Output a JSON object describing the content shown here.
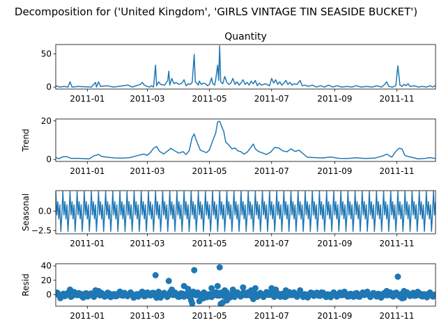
{
  "figure": {
    "suptitle": "Decomposition for ('United Kingdom', 'GIRLS VINTAGE TIN SEASIDE BUCKET')"
  },
  "colors": {
    "line": "#1f77b4",
    "axis": "#000000",
    "background": "#ffffff"
  },
  "chart_data": [
    {
      "type": "line",
      "title": "Quantity",
      "ylabel": "",
      "ylim": [
        -3,
        64
      ],
      "yticks": [
        "0",
        "50"
      ],
      "ytick_values": [
        0,
        50
      ],
      "xlim": [
        "2010-12-01",
        "2011-12-09"
      ],
      "xticks": [
        "2011-01",
        "2011-03",
        "2011-05",
        "2011-07",
        "2011-09",
        "2011-11"
      ],
      "xtick_values": [
        "2011-01-01",
        "2011-03-01",
        "2011-05-01",
        "2011-07-01",
        "2011-09-01",
        "2011-11-01"
      ],
      "points": [
        [
          "2010-12-01",
          2
        ],
        [
          "2010-12-05",
          0
        ],
        [
          "2010-12-09",
          1
        ],
        [
          "2010-12-13",
          0
        ],
        [
          "2010-12-15",
          8
        ],
        [
          "2010-12-17",
          0
        ],
        [
          "2010-12-23",
          1
        ],
        [
          "2011-01-05",
          0
        ],
        [
          "2011-01-09",
          7
        ],
        [
          "2011-01-10",
          0
        ],
        [
          "2011-01-12",
          8
        ],
        [
          "2011-01-14",
          1
        ],
        [
          "2011-01-20",
          2
        ],
        [
          "2011-01-27",
          0
        ],
        [
          "2011-02-10",
          3
        ],
        [
          "2011-02-14",
          0
        ],
        [
          "2011-02-22",
          4
        ],
        [
          "2011-02-24",
          7
        ],
        [
          "2011-02-26",
          3
        ],
        [
          "2011-03-01",
          1
        ],
        [
          "2011-03-03",
          0
        ],
        [
          "2011-03-05",
          2
        ],
        [
          "2011-03-07",
          0
        ],
        [
          "2011-03-09",
          33
        ],
        [
          "2011-03-10",
          2
        ],
        [
          "2011-03-12",
          8
        ],
        [
          "2011-03-14",
          4
        ],
        [
          "2011-03-18",
          3
        ],
        [
          "2011-03-21",
          10
        ],
        [
          "2011-03-22",
          24
        ],
        [
          "2011-03-23",
          3
        ],
        [
          "2011-03-25",
          13
        ],
        [
          "2011-03-27",
          5
        ],
        [
          "2011-03-29",
          7
        ],
        [
          "2011-04-01",
          4
        ],
        [
          "2011-04-04",
          6
        ],
        [
          "2011-04-06",
          11
        ],
        [
          "2011-04-08",
          2
        ],
        [
          "2011-04-10",
          5
        ],
        [
          "2011-04-12",
          4
        ],
        [
          "2011-04-14",
          7
        ],
        [
          "2011-04-16",
          49
        ],
        [
          "2011-04-17",
          8
        ],
        [
          "2011-04-19",
          5
        ],
        [
          "2011-04-20",
          3
        ],
        [
          "2011-04-21",
          9
        ],
        [
          "2011-04-23",
          4
        ],
        [
          "2011-04-25",
          6
        ],
        [
          "2011-04-27",
          5
        ],
        [
          "2011-04-29",
          2
        ],
        [
          "2011-05-01",
          4
        ],
        [
          "2011-05-03",
          14
        ],
        [
          "2011-05-04",
          6
        ],
        [
          "2011-05-06",
          3
        ],
        [
          "2011-05-07",
          10
        ],
        [
          "2011-05-09",
          33
        ],
        [
          "2011-05-10",
          10
        ],
        [
          "2011-05-11",
          62
        ],
        [
          "2011-05-12",
          8
        ],
        [
          "2011-05-14",
          5
        ],
        [
          "2011-05-16",
          16
        ],
        [
          "2011-05-18",
          7
        ],
        [
          "2011-05-20",
          4
        ],
        [
          "2011-05-22",
          6
        ],
        [
          "2011-05-24",
          13
        ],
        [
          "2011-05-26",
          4
        ],
        [
          "2011-05-28",
          8
        ],
        [
          "2011-05-30",
          3
        ],
        [
          "2011-06-01",
          6
        ],
        [
          "2011-06-03",
          11
        ],
        [
          "2011-06-05",
          4
        ],
        [
          "2011-06-07",
          7
        ],
        [
          "2011-06-09",
          3
        ],
        [
          "2011-06-11",
          9
        ],
        [
          "2011-06-13",
          5
        ],
        [
          "2011-06-15",
          10
        ],
        [
          "2011-06-17",
          2
        ],
        [
          "2011-06-19",
          6
        ],
        [
          "2011-06-21",
          3
        ],
        [
          "2011-06-25",
          5
        ],
        [
          "2011-06-29",
          2
        ],
        [
          "2011-07-01",
          13
        ],
        [
          "2011-07-03",
          6
        ],
        [
          "2011-07-05",
          11
        ],
        [
          "2011-07-07",
          4
        ],
        [
          "2011-07-09",
          8
        ],
        [
          "2011-07-11",
          3
        ],
        [
          "2011-07-13",
          6
        ],
        [
          "2011-07-15",
          10
        ],
        [
          "2011-07-17",
          4
        ],
        [
          "2011-07-19",
          7
        ],
        [
          "2011-07-21",
          3
        ],
        [
          "2011-07-23",
          5
        ],
        [
          "2011-07-26",
          4
        ],
        [
          "2011-07-29",
          10
        ],
        [
          "2011-07-31",
          2
        ],
        [
          "2011-08-03",
          3
        ],
        [
          "2011-08-06",
          1
        ],
        [
          "2011-08-10",
          3
        ],
        [
          "2011-08-14",
          0
        ],
        [
          "2011-08-18",
          2
        ],
        [
          "2011-08-22",
          0
        ],
        [
          "2011-08-26",
          3
        ],
        [
          "2011-08-30",
          0
        ],
        [
          "2011-09-03",
          2
        ],
        [
          "2011-09-08",
          0
        ],
        [
          "2011-09-13",
          1
        ],
        [
          "2011-09-18",
          0
        ],
        [
          "2011-09-22",
          2
        ],
        [
          "2011-09-27",
          0
        ],
        [
          "2011-10-02",
          1
        ],
        [
          "2011-10-08",
          0
        ],
        [
          "2011-10-12",
          2
        ],
        [
          "2011-10-17",
          0
        ],
        [
          "2011-10-20",
          4
        ],
        [
          "2011-10-22",
          8
        ],
        [
          "2011-10-24",
          1
        ],
        [
          "2011-10-28",
          0
        ],
        [
          "2011-10-31",
          2
        ],
        [
          "2011-11-02",
          32
        ],
        [
          "2011-11-04",
          3
        ],
        [
          "2011-11-06",
          1
        ],
        [
          "2011-11-08",
          4
        ],
        [
          "2011-11-10",
          2
        ],
        [
          "2011-11-12",
          5
        ],
        [
          "2011-11-14",
          1
        ],
        [
          "2011-11-18",
          2
        ],
        [
          "2011-11-22",
          0
        ],
        [
          "2011-11-26",
          1
        ],
        [
          "2011-11-30",
          0
        ],
        [
          "2011-12-04",
          2
        ],
        [
          "2011-12-06",
          0
        ],
        [
          "2011-12-09",
          2
        ]
      ]
    },
    {
      "type": "line",
      "title": "",
      "ylabel": "Trend",
      "ylim": [
        -1,
        21
      ],
      "yticks": [
        "0",
        "20"
      ],
      "ytick_values": [
        0,
        20
      ],
      "xlim": [
        "2010-12-01",
        "2011-12-09"
      ],
      "xticks": [
        "2011-01",
        "2011-03",
        "2011-05",
        "2011-07",
        "2011-09",
        "2011-11"
      ],
      "xtick_values": [
        "2011-01-01",
        "2011-03-01",
        "2011-05-01",
        "2011-07-01",
        "2011-09-01",
        "2011-11-01"
      ],
      "points": [
        [
          "2010-12-01",
          1.0
        ],
        [
          "2010-12-04",
          0.4
        ],
        [
          "2010-12-08",
          1.4
        ],
        [
          "2010-12-12",
          1.4
        ],
        [
          "2010-12-16",
          0.6
        ],
        [
          "2010-12-24",
          0.6
        ],
        [
          "2011-01-03",
          0.3
        ],
        [
          "2011-01-07",
          1.8
        ],
        [
          "2011-01-12",
          2.6
        ],
        [
          "2011-01-15",
          1.6
        ],
        [
          "2011-01-20",
          1.2
        ],
        [
          "2011-01-28",
          0.8
        ],
        [
          "2011-02-05",
          0.7
        ],
        [
          "2011-02-12",
          1.0
        ],
        [
          "2011-02-19",
          2.0
        ],
        [
          "2011-02-25",
          2.8
        ],
        [
          "2011-03-01",
          2.2
        ],
        [
          "2011-03-04",
          3.6
        ],
        [
          "2011-03-07",
          5.8
        ],
        [
          "2011-03-10",
          6.8
        ],
        [
          "2011-03-13",
          4.2
        ],
        [
          "2011-03-17",
          2.9
        ],
        [
          "2011-03-21",
          4.5
        ],
        [
          "2011-03-24",
          5.8
        ],
        [
          "2011-03-28",
          4.4
        ],
        [
          "2011-04-01",
          3.3
        ],
        [
          "2011-04-05",
          4.1
        ],
        [
          "2011-04-08",
          2.6
        ],
        [
          "2011-04-11",
          4.5
        ],
        [
          "2011-04-14",
          11.5
        ],
        [
          "2011-04-16",
          13.2
        ],
        [
          "2011-04-18",
          10.0
        ],
        [
          "2011-04-22",
          4.8
        ],
        [
          "2011-04-25",
          4.2
        ],
        [
          "2011-04-28",
          3.5
        ],
        [
          "2011-05-01",
          5.0
        ],
        [
          "2011-05-04",
          9.5
        ],
        [
          "2011-05-07",
          13.5
        ],
        [
          "2011-05-09",
          19.5
        ],
        [
          "2011-05-11",
          19.8
        ],
        [
          "2011-05-13",
          17.0
        ],
        [
          "2011-05-15",
          14.5
        ],
        [
          "2011-05-17",
          9.0
        ],
        [
          "2011-05-20",
          7.5
        ],
        [
          "2011-05-23",
          5.5
        ],
        [
          "2011-05-26",
          6.0
        ],
        [
          "2011-05-29",
          4.5
        ],
        [
          "2011-06-01",
          4.0
        ],
        [
          "2011-06-04",
          2.8
        ],
        [
          "2011-06-07",
          3.8
        ],
        [
          "2011-06-10",
          5.8
        ],
        [
          "2011-06-13",
          8.0
        ],
        [
          "2011-06-15",
          5.5
        ],
        [
          "2011-06-18",
          4.2
        ],
        [
          "2011-06-22",
          3.4
        ],
        [
          "2011-06-26",
          2.6
        ],
        [
          "2011-06-30",
          3.8
        ],
        [
          "2011-07-04",
          6.2
        ],
        [
          "2011-07-08",
          6.0
        ],
        [
          "2011-07-12",
          4.5
        ],
        [
          "2011-07-16",
          4.0
        ],
        [
          "2011-07-20",
          5.5
        ],
        [
          "2011-07-24",
          4.2
        ],
        [
          "2011-07-28",
          4.8
        ],
        [
          "2011-08-01",
          3.0
        ],
        [
          "2011-08-05",
          1.2
        ],
        [
          "2011-08-12",
          1.0
        ],
        [
          "2011-08-20",
          0.8
        ],
        [
          "2011-08-28",
          1.3
        ],
        [
          "2011-09-05",
          0.6
        ],
        [
          "2011-09-14",
          0.5
        ],
        [
          "2011-09-22",
          0.9
        ],
        [
          "2011-10-01",
          0.5
        ],
        [
          "2011-10-10",
          0.7
        ],
        [
          "2011-10-18",
          1.8
        ],
        [
          "2011-10-22",
          2.8
        ],
        [
          "2011-10-27",
          1.2
        ],
        [
          "2011-10-31",
          4.2
        ],
        [
          "2011-11-03",
          5.8
        ],
        [
          "2011-11-06",
          5.5
        ],
        [
          "2011-11-09",
          2.0
        ],
        [
          "2011-11-15",
          1.2
        ],
        [
          "2011-11-22",
          0.3
        ],
        [
          "2011-11-29",
          0.6
        ],
        [
          "2011-12-03",
          1.0
        ],
        [
          "2011-12-09",
          0.5
        ]
      ]
    },
    {
      "type": "line",
      "title": "",
      "ylabel": "Seasonal",
      "ylim": [
        -2.9,
        2.6
      ],
      "yticks": [
        "0.0",
        "−2.5"
      ],
      "ytick_values": [
        0,
        -2.5
      ],
      "xlim": [
        "2010-12-01",
        "2011-12-09"
      ],
      "xticks": [
        "2011-01",
        "2011-03",
        "2011-05",
        "2011-07",
        "2011-09",
        "2011-11"
      ],
      "xtick_values": [
        "2011-01-01",
        "2011-03-01",
        "2011-05-01",
        "2011-07-01",
        "2011-09-01",
        "2011-11-01"
      ],
      "period_days": 7,
      "weekly_pattern": [
        2.5,
        -0.5,
        1.2,
        -1.0,
        0.8,
        -2.6,
        -0.4
      ]
    },
    {
      "type": "scatter",
      "title": "",
      "ylabel": "Resid",
      "ylim": [
        -16,
        43
      ],
      "yticks": [
        "0",
        "20",
        "40"
      ],
      "ytick_values": [
        0,
        20,
        40
      ],
      "xlim": [
        "2010-12-01",
        "2011-12-09"
      ],
      "xticks": [
        "2011-01",
        "2011-03",
        "2011-05",
        "2011-07",
        "2011-09",
        "2011-11"
      ],
      "xtick_values": [
        "2011-01-01",
        "2011-03-01",
        "2011-05-01",
        "2011-07-01",
        "2011-09-01",
        "2011-11-01"
      ],
      "points": [
        [
          "2010-12-15",
          7
        ],
        [
          "2011-01-09",
          6
        ],
        [
          "2011-01-12",
          5
        ],
        [
          "2011-02-24",
          4
        ],
        [
          "2011-03-09",
          27
        ],
        [
          "2011-03-12",
          4
        ],
        [
          "2011-03-22",
          19
        ],
        [
          "2011-03-25",
          7
        ],
        [
          "2011-03-14",
          -4
        ],
        [
          "2011-04-06",
          12
        ],
        [
          "2011-04-10",
          8
        ],
        [
          "2011-04-13",
          -8
        ],
        [
          "2011-04-16",
          34
        ],
        [
          "2011-04-14",
          -12
        ],
        [
          "2011-04-21",
          -9
        ],
        [
          "2011-04-25",
          -5
        ],
        [
          "2011-05-03",
          9
        ],
        [
          "2011-05-09",
          12
        ],
        [
          "2011-05-11",
          38
        ],
        [
          "2011-05-12",
          -13
        ],
        [
          "2011-05-14",
          -11
        ],
        [
          "2011-05-16",
          6
        ],
        [
          "2011-05-18",
          -8
        ],
        [
          "2011-05-24",
          7
        ],
        [
          "2011-06-03",
          10
        ],
        [
          "2011-06-11",
          6
        ],
        [
          "2011-06-15",
          9
        ],
        [
          "2011-06-13",
          -6
        ],
        [
          "2011-07-01",
          9
        ],
        [
          "2011-07-05",
          7
        ],
        [
          "2011-07-15",
          6
        ],
        [
          "2011-07-29",
          6
        ],
        [
          "2011-10-22",
          5
        ],
        [
          "2011-11-02",
          25
        ],
        [
          "2011-11-06",
          -5
        ],
        [
          "2011-11-08",
          5
        ]
      ],
      "scatter_band": {
        "from": "2010-12-01",
        "to": "2011-12-09",
        "step_days": 1.5,
        "amplitude_small": 2.5,
        "amplitude_mid": 5
      }
    }
  ]
}
